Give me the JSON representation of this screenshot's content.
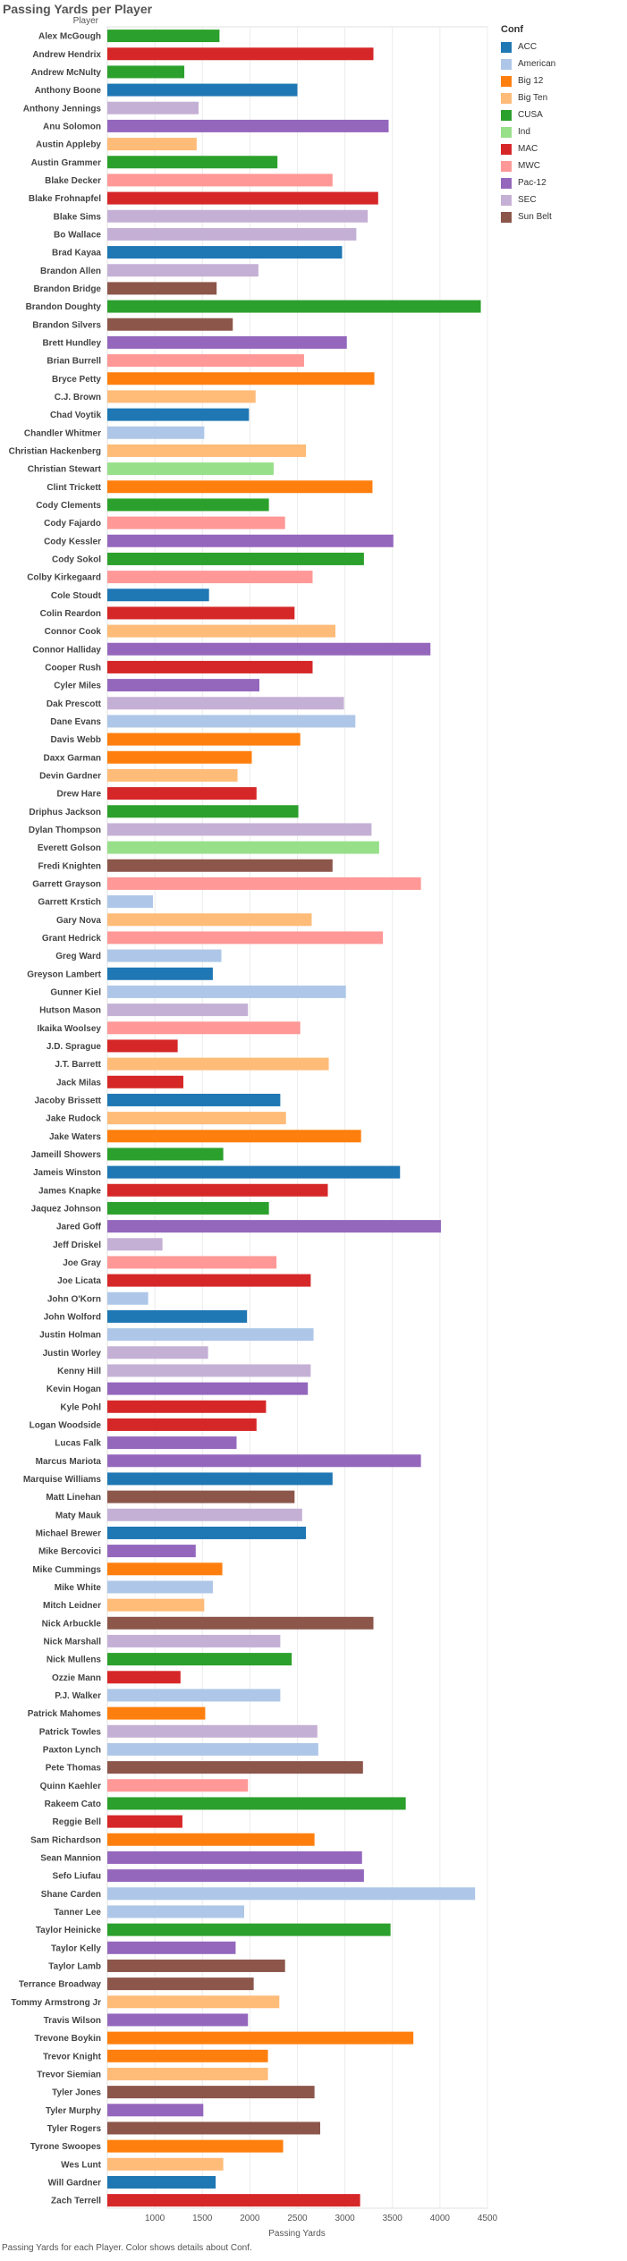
{
  "title": "Passing Yards per Player",
  "caption": "Passing Yards for each Player.  Color shows details about Conf.",
  "legend": {
    "title": "Conf",
    "items": [
      {
        "label": "ACC",
        "color": "#1f77b4"
      },
      {
        "label": "American",
        "color": "#aec7e8"
      },
      {
        "label": "Big 12",
        "color": "#ff7f0e"
      },
      {
        "label": "Big Ten",
        "color": "#ffbb78"
      },
      {
        "label": "CUSA",
        "color": "#2ca02c"
      },
      {
        "label": "Ind",
        "color": "#98df8a"
      },
      {
        "label": "MAC",
        "color": "#d62728"
      },
      {
        "label": "MWC",
        "color": "#ff9896"
      },
      {
        "label": "Pac-12",
        "color": "#9467bd"
      },
      {
        "label": "SEC",
        "color": "#c5b0d5"
      },
      {
        "label": "Sun Belt",
        "color": "#8c564b"
      }
    ]
  },
  "chart_data": {
    "type": "bar",
    "orientation": "horizontal",
    "title": "Passing Yards per Player",
    "ylabel": "Player",
    "xlabel": "Passing Yards",
    "xlim": [
      500,
      4500
    ],
    "xticks": [
      1000,
      1500,
      2000,
      2500,
      3000,
      3500,
      4000,
      4500
    ],
    "grid": true,
    "legend_position": "right",
    "categories": [
      "Alex McGough",
      "Andrew Hendrix",
      "Andrew McNulty",
      "Anthony Boone",
      "Anthony Jennings",
      "Anu Solomon",
      "Austin Appleby",
      "Austin Grammer",
      "Blake Decker",
      "Blake Frohnapfel",
      "Blake Sims",
      "Bo Wallace",
      "Brad Kayaa",
      "Brandon Allen",
      "Brandon Bridge",
      "Brandon Doughty",
      "Brandon Silvers",
      "Brett Hundley",
      "Brian Burrell",
      "Bryce Petty",
      "C.J. Brown",
      "Chad Voytik",
      "Chandler Whitmer",
      "Christian Hackenberg",
      "Christian Stewart",
      "Clint Trickett",
      "Cody Clements",
      "Cody Fajardo",
      "Cody Kessler",
      "Cody Sokol",
      "Colby Kirkegaard",
      "Cole Stoudt",
      "Colin Reardon",
      "Connor Cook",
      "Connor Halliday",
      "Cooper Rush",
      "Cyler Miles",
      "Dak Prescott",
      "Dane Evans",
      "Davis Webb",
      "Daxx Garman",
      "Devin Gardner",
      "Drew Hare",
      "Driphus Jackson",
      "Dylan Thompson",
      "Everett Golson",
      "Fredi Knighten",
      "Garrett Grayson",
      "Garrett Krstich",
      "Gary Nova",
      "Grant Hedrick",
      "Greg Ward",
      "Greyson Lambert",
      "Gunner Kiel",
      "Hutson Mason",
      "Ikaika Woolsey",
      "J.D. Sprague",
      "J.T. Barrett",
      "Jack Milas",
      "Jacoby Brissett",
      "Jake Rudock",
      "Jake Waters",
      "Jameill Showers",
      "Jameis Winston",
      "James Knapke",
      "Jaquez Johnson",
      "Jared Goff",
      "Jeff Driskel",
      "Joe Gray",
      "Joe Licata",
      "John O'Korn",
      "John Wolford",
      "Justin Holman",
      "Justin Worley",
      "Kenny Hill",
      "Kevin Hogan",
      "Kyle Pohl",
      "Logan Woodside",
      "Lucas Falk",
      "Marcus Mariota",
      "Marquise Williams",
      "Matt Linehan",
      "Maty Mauk",
      "Michael Brewer",
      "Mike Bercovici",
      "Mike Cummings",
      "Mike White",
      "Mitch Leidner",
      "Nick Arbuckle",
      "Nick Marshall",
      "Nick Mullens",
      "Ozzie Mann",
      "P.J. Walker",
      "Patrick Mahomes",
      "Patrick Towles",
      "Paxton Lynch",
      "Pete Thomas",
      "Quinn Kaehler",
      "Rakeem Cato",
      "Reggie Bell",
      "Sam Richardson",
      "Sean Mannion",
      "Sefo Liufau",
      "Shane Carden",
      "Tanner Lee",
      "Taylor Heinicke",
      "Taylor Kelly",
      "Taylor Lamb",
      "Terrance Broadway",
      "Tommy Armstrong Jr",
      "Travis Wilson",
      "Trevone Boykin",
      "Trevor Knight",
      "Trevor Siemian",
      "Tyler Jones",
      "Tyler Murphy",
      "Tyler Rogers",
      "Tyrone Swoopes",
      "Wes Lunt",
      "Will Gardner",
      "Zach Terrell"
    ],
    "values": [
      1680,
      3300,
      1310,
      2500,
      1460,
      3460,
      1440,
      2290,
      2870,
      3350,
      3240,
      3120,
      2970,
      2090,
      1650,
      4430,
      1820,
      3020,
      2570,
      3310,
      2060,
      1990,
      1520,
      2590,
      2250,
      3290,
      2200,
      2370,
      3510,
      3200,
      2660,
      1570,
      2470,
      2900,
      3900,
      2660,
      2100,
      2990,
      3110,
      2530,
      2020,
      1870,
      2070,
      2510,
      3280,
      3360,
      2870,
      3800,
      980,
      2650,
      3400,
      1700,
      1610,
      3010,
      1980,
      2530,
      1240,
      2830,
      1300,
      2320,
      2380,
      3170,
      1720,
      3580,
      2820,
      2200,
      4010,
      1080,
      2280,
      2640,
      930,
      1970,
      2670,
      1560,
      2640,
      2610,
      2170,
      2070,
      1860,
      3800,
      2870,
      2470,
      2550,
      2590,
      1430,
      1710,
      1610,
      1520,
      3300,
      2320,
      2440,
      1270,
      2320,
      1530,
      2710,
      2720,
      3190,
      1980,
      3640,
      1290,
      2680,
      3180,
      3200,
      4370,
      1940,
      3480,
      1850,
      2370,
      2040,
      2310,
      1980,
      3720,
      2190,
      2190,
      2680,
      1510,
      2740,
      2350,
      1720,
      1640,
      3160
    ],
    "conf": [
      "CUSA",
      "MAC",
      "CUSA",
      "ACC",
      "SEC",
      "Pac-12",
      "Big Ten",
      "CUSA",
      "MWC",
      "MAC",
      "SEC",
      "SEC",
      "ACC",
      "SEC",
      "Sun Belt",
      "CUSA",
      "Sun Belt",
      "Pac-12",
      "MWC",
      "Big 12",
      "Big Ten",
      "ACC",
      "American",
      "Big Ten",
      "Ind",
      "Big 12",
      "CUSA",
      "MWC",
      "Pac-12",
      "CUSA",
      "MWC",
      "ACC",
      "MAC",
      "Big Ten",
      "Pac-12",
      "MAC",
      "Pac-12",
      "SEC",
      "American",
      "Big 12",
      "Big 12",
      "Big Ten",
      "MAC",
      "CUSA",
      "SEC",
      "Ind",
      "Sun Belt",
      "MWC",
      "American",
      "Big Ten",
      "MWC",
      "American",
      "ACC",
      "American",
      "SEC",
      "MWC",
      "MAC",
      "Big Ten",
      "MAC",
      "ACC",
      "Big Ten",
      "Big 12",
      "CUSA",
      "ACC",
      "MAC",
      "CUSA",
      "Pac-12",
      "SEC",
      "MWC",
      "MAC",
      "American",
      "ACC",
      "American",
      "SEC",
      "SEC",
      "Pac-12",
      "MAC",
      "MAC",
      "Pac-12",
      "Pac-12",
      "ACC",
      "Sun Belt",
      "SEC",
      "ACC",
      "Pac-12",
      "Big 12",
      "American",
      "Big Ten",
      "Sun Belt",
      "SEC",
      "CUSA",
      "MAC",
      "American",
      "Big 12",
      "SEC",
      "American",
      "Sun Belt",
      "MWC",
      "CUSA",
      "MAC",
      "Big 12",
      "Pac-12",
      "Pac-12",
      "American",
      "American",
      "CUSA",
      "Pac-12",
      "Sun Belt",
      "Sun Belt",
      "Big Ten",
      "Pac-12",
      "Big 12",
      "Big 12",
      "Big Ten",
      "Sun Belt",
      "Pac-12",
      "Sun Belt",
      "Big 12",
      "Big Ten",
      "ACC",
      "MAC"
    ]
  }
}
